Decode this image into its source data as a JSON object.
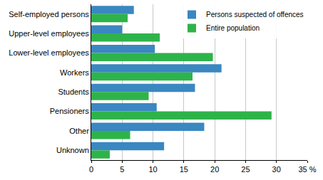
{
  "chart_data": {
    "type": "bar",
    "orientation": "horizontal",
    "categories": [
      "Self-employed persons",
      "Upper-level employees",
      "Lower-level employees",
      "Workers",
      "Students",
      "Pensioners",
      "Other",
      "Unknown"
    ],
    "series": [
      {
        "name": "Persons suspected of offences",
        "color": "#3a87c1",
        "values": [
          6.9,
          5.0,
          10.3,
          21.1,
          16.8,
          10.6,
          18.3,
          11.8
        ]
      },
      {
        "name": "Entire population",
        "color": "#2eb34a",
        "values": [
          5.9,
          11.1,
          19.7,
          16.4,
          9.3,
          29.2,
          6.3,
          3.0
        ]
      }
    ],
    "xlim": [
      0,
      35
    ],
    "xticks": [
      0,
      5,
      10,
      15,
      20,
      25,
      30,
      {
        "value": 35,
        "label": "35 %"
      }
    ],
    "grid": true,
    "legend": "upper right"
  }
}
